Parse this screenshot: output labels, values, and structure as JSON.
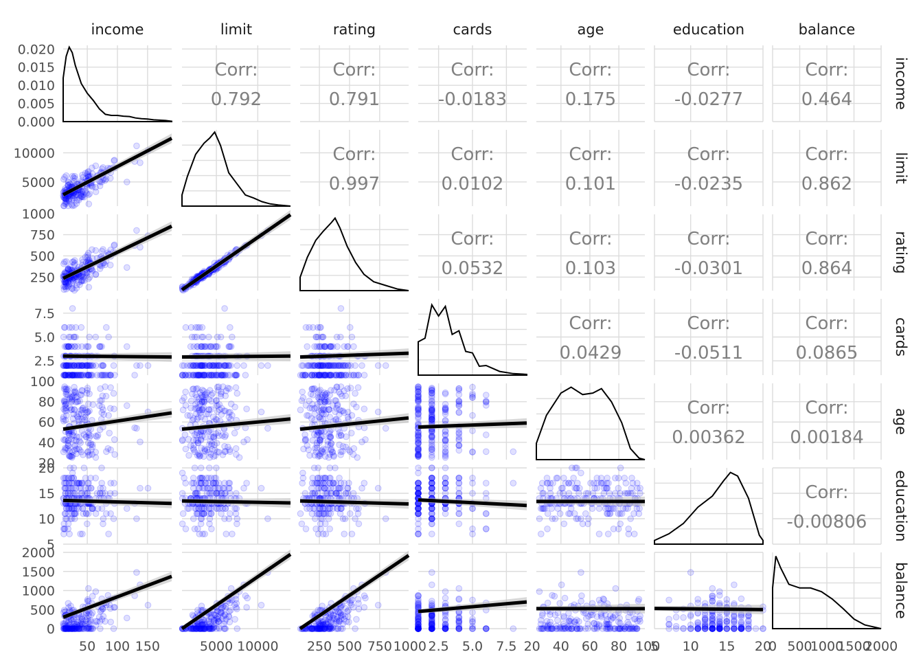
{
  "chart_data": {
    "type": "scatter-matrix",
    "variables": [
      "income",
      "limit",
      "rating",
      "cards",
      "age",
      "education",
      "balance"
    ],
    "corr_prefix": "Corr:",
    "correlations": {
      "limit|income": "0.792",
      "rating|income": "0.791",
      "cards|income": "-0.0183",
      "age|income": "0.175",
      "education|income": "-0.0277",
      "balance|income": "0.464",
      "rating|limit": "0.997",
      "cards|limit": "0.0102",
      "age|limit": "0.101",
      "education|limit": "-0.0235",
      "balance|limit": "0.862",
      "cards|rating": "0.0532",
      "age|rating": "0.103",
      "education|rating": "-0.0301",
      "balance|rating": "0.864",
      "age|cards": "0.0429",
      "education|cards": "-0.0511",
      "balance|cards": "0.0865",
      "education|age": "0.00362",
      "balance|age": "0.00184",
      "balance|education": "-0.00806"
    },
    "x_ticks": [
      [
        "50",
        "100",
        "150"
      ],
      [
        "5000",
        "10000"
      ],
      [
        "250",
        "500",
        "750",
        "1000"
      ],
      [
        "2.5",
        "5.0",
        "7.5"
      ],
      [
        "20",
        "40",
        "60",
        "80",
        "100"
      ],
      [
        "5",
        "10",
        "15",
        "20"
      ],
      [
        "0",
        "500",
        "1000",
        "1500",
        "2000"
      ]
    ],
    "x_tick_values": [
      [
        50,
        100,
        150
      ],
      [
        5000,
        10000
      ],
      [
        250,
        500,
        750,
        1000
      ],
      [
        2.5,
        5.0,
        7.5
      ],
      [
        20,
        40,
        60,
        80,
        100
      ],
      [
        5,
        10,
        15,
        20
      ],
      [
        0,
        500,
        1000,
        1500,
        2000
      ]
    ],
    "y_ticks": [
      [
        "0.000",
        "0.005",
        "0.010",
        "0.015",
        "0.020"
      ],
      [
        "5000",
        "10000"
      ],
      [
        "250",
        "500",
        "750",
        "1000"
      ],
      [
        "2.5",
        "5.0",
        "7.5"
      ],
      [
        "20",
        "40",
        "60",
        "80",
        "100"
      ],
      [
        "5",
        "10",
        "15",
        "20"
      ],
      [
        "0",
        "500",
        "1000",
        "1500",
        "2000"
      ]
    ],
    "y_tick_values": [
      [
        0.0,
        0.005,
        0.01,
        0.015,
        0.02
      ],
      [
        5000,
        10000
      ],
      [
        250,
        500,
        750,
        1000
      ],
      [
        2.5,
        5.0,
        7.5
      ],
      [
        20,
        40,
        60,
        80,
        100
      ],
      [
        5,
        10,
        15,
        20
      ],
      [
        0,
        500,
        1000,
        1500,
        2000
      ]
    ],
    "ranges": {
      "income": [
        10,
        190
      ],
      "limit": [
        850,
        13950
      ],
      "rating": [
        90,
        990
      ],
      "cards": [
        1,
        9
      ],
      "age": [
        23,
        98
      ],
      "education": [
        5,
        20
      ],
      "balance": [
        0,
        2000
      ]
    },
    "income_density_ylim": [
      0,
      0.021
    ],
    "density_curves": {
      "income": [
        [
          10,
          0.012
        ],
        [
          15,
          0.018
        ],
        [
          20,
          0.0205
        ],
        [
          25,
          0.019
        ],
        [
          30,
          0.0155
        ],
        [
          40,
          0.0105
        ],
        [
          50,
          0.0078
        ],
        [
          60,
          0.0058
        ],
        [
          70,
          0.0035
        ],
        [
          80,
          0.002
        ],
        [
          90,
          0.0017
        ],
        [
          100,
          0.0017
        ],
        [
          110,
          0.0015
        ],
        [
          120,
          0.0014
        ],
        [
          130,
          0.001
        ],
        [
          140,
          0.0008
        ],
        [
          150,
          0.0007
        ],
        [
          160,
          0.0005
        ],
        [
          170,
          0.0004
        ],
        [
          180,
          0.0003
        ],
        [
          190,
          0.0001
        ]
      ],
      "limit": [
        [
          850,
          0.15
        ],
        [
          1500,
          0.4
        ],
        [
          2500,
          0.7
        ],
        [
          3500,
          0.85
        ],
        [
          4200,
          0.92
        ],
        [
          4800,
          1.0
        ],
        [
          5500,
          0.82
        ],
        [
          6500,
          0.45
        ],
        [
          7500,
          0.3
        ],
        [
          8500,
          0.15
        ],
        [
          9500,
          0.11
        ],
        [
          10500,
          0.06
        ],
        [
          11500,
          0.03
        ],
        [
          12500,
          0.015
        ],
        [
          13950,
          0.0
        ]
      ],
      "rating": [
        [
          90,
          0.18
        ],
        [
          150,
          0.45
        ],
        [
          220,
          0.68
        ],
        [
          280,
          0.8
        ],
        [
          350,
          0.92
        ],
        [
          380,
          0.98
        ],
        [
          420,
          0.85
        ],
        [
          480,
          0.6
        ],
        [
          550,
          0.38
        ],
        [
          620,
          0.22
        ],
        [
          700,
          0.12
        ],
        [
          800,
          0.07
        ],
        [
          900,
          0.02
        ],
        [
          990,
          0.0
        ]
      ],
      "cards": [
        [
          1,
          0.45
        ],
        [
          1.5,
          0.5
        ],
        [
          2,
          0.95
        ],
        [
          2.5,
          0.8
        ],
        [
          3,
          0.93
        ],
        [
          3.5,
          0.55
        ],
        [
          4,
          0.6
        ],
        [
          4.5,
          0.32
        ],
        [
          5,
          0.3
        ],
        [
          5.5,
          0.12
        ],
        [
          6,
          0.13
        ],
        [
          7,
          0.05
        ],
        [
          8,
          0.02
        ],
        [
          9,
          0.01
        ]
      ],
      "age": [
        [
          23,
          0.22
        ],
        [
          30,
          0.6
        ],
        [
          40,
          0.9
        ],
        [
          47,
          0.98
        ],
        [
          55,
          0.88
        ],
        [
          62,
          0.9
        ],
        [
          68,
          0.96
        ],
        [
          75,
          0.78
        ],
        [
          82,
          0.5
        ],
        [
          88,
          0.15
        ],
        [
          94,
          0.02
        ],
        [
          98,
          0.0
        ]
      ],
      "education": [
        [
          5,
          0.05
        ],
        [
          7,
          0.14
        ],
        [
          9,
          0.28
        ],
        [
          11,
          0.5
        ],
        [
          13,
          0.65
        ],
        [
          14.5,
          0.85
        ],
        [
          15.5,
          0.97
        ],
        [
          16.5,
          0.92
        ],
        [
          18,
          0.62
        ],
        [
          19.5,
          0.12
        ],
        [
          20,
          0.05
        ]
      ],
      "balance": [
        [
          0,
          0.55
        ],
        [
          60,
          0.98
        ],
        [
          150,
          0.82
        ],
        [
          300,
          0.6
        ],
        [
          500,
          0.55
        ],
        [
          700,
          0.55
        ],
        [
          900,
          0.5
        ],
        [
          1100,
          0.4
        ],
        [
          1300,
          0.27
        ],
        [
          1500,
          0.13
        ],
        [
          1700,
          0.05
        ],
        [
          2000,
          0.0
        ]
      ]
    },
    "fit_lines": {
      "limit|income": [
        2800,
        12500
      ],
      "rating|income": [
        235,
        850
      ],
      "cards|income": [
        3.0,
        2.9
      ],
      "age|income": [
        53,
        69
      ],
      "education|income": [
        13.6,
        13.0
      ],
      "balance|income": [
        300,
        1370
      ],
      "rating|limit": [
        100,
        985
      ],
      "cards|limit": [
        2.9,
        3.0
      ],
      "age|limit": [
        53,
        63
      ],
      "education|limit": [
        13.5,
        13.1
      ],
      "balance|limit": [
        0,
        1950
      ],
      "cards|rating": [
        2.9,
        3.3
      ],
      "age|rating": [
        53,
        64
      ],
      "education|rating": [
        13.5,
        12.9
      ],
      "balance|rating": [
        0,
        1920
      ],
      "age|cards": [
        55,
        59
      ],
      "education|cards": [
        13.7,
        12.6
      ],
      "balance|cards": [
        450,
        700
      ],
      "education|age": [
        13.4,
        13.4
      ],
      "balance|age": [
        525,
        525
      ],
      "balance|education": [
        530,
        500
      ]
    },
    "point_color": "#0000ff",
    "line_color": "#000000",
    "band_color": "#bebebe",
    "grid_color": "#dcdcdc"
  }
}
